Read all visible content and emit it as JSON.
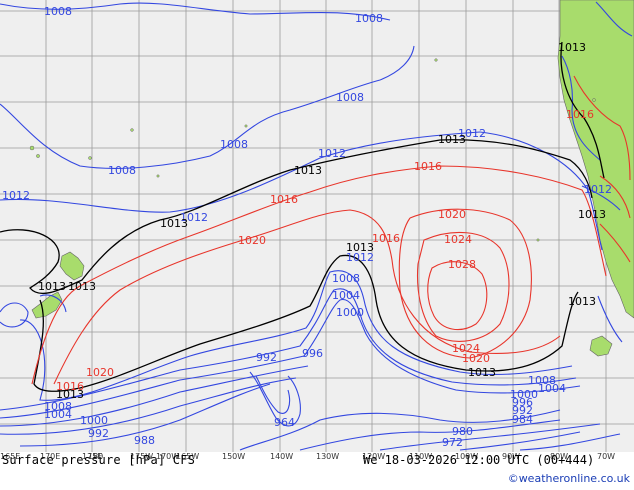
{
  "colors": {
    "sea": "#efefef",
    "land": "#a8dc6c",
    "grid": "#9a9a9a",
    "low_isobar": "#3347e0",
    "mean_isobar": "#000000",
    "high_isobar": "#e8352b",
    "credit": "#1a3db5"
  },
  "footer": {
    "title": "Surface pressure [hPa] CFS",
    "valid_time": "We 18-03-2026 12:00 UTC (00+444)",
    "credit": "©weatheronline.co.uk"
  },
  "longitude_ticks": [
    "165E",
    "170E",
    "175E",
    "180",
    "175W",
    "170W",
    "165W",
    "150W",
    "140W",
    "130W",
    "120W",
    "110W",
    "100W",
    "90W",
    "80W",
    "70W"
  ],
  "isobar_labels": [
    {
      "text": "1008",
      "kind": "low"
    },
    {
      "text": "1008",
      "kind": "low"
    },
    {
      "text": "1008",
      "kind": "low"
    },
    {
      "text": "1008",
      "kind": "low"
    },
    {
      "text": "1008",
      "kind": "low"
    },
    {
      "text": "1012",
      "kind": "low"
    },
    {
      "text": "1012",
      "kind": "low"
    },
    {
      "text": "1012",
      "kind": "low"
    },
    {
      "text": "1012",
      "kind": "low"
    },
    {
      "text": "1012",
      "kind": "low"
    },
    {
      "text": "1012",
      "kind": "low"
    },
    {
      "text": "1013",
      "kind": "mean"
    },
    {
      "text": "1013",
      "kind": "mean"
    },
    {
      "text": "1013",
      "kind": "mean"
    },
    {
      "text": "1013",
      "kind": "mean"
    },
    {
      "text": "1013",
      "kind": "mean"
    },
    {
      "text": "1013",
      "kind": "mean"
    },
    {
      "text": "1013",
      "kind": "mean"
    },
    {
      "text": "1013",
      "kind": "mean"
    },
    {
      "text": "1013",
      "kind": "mean"
    },
    {
      "text": "1013",
      "kind": "mean"
    },
    {
      "text": "1013",
      "kind": "mean"
    },
    {
      "text": "1016",
      "kind": "high"
    },
    {
      "text": "1016",
      "kind": "high"
    },
    {
      "text": "1016",
      "kind": "high"
    },
    {
      "text": "1016",
      "kind": "high"
    },
    {
      "text": "1016",
      "kind": "high"
    },
    {
      "text": "1020",
      "kind": "high"
    },
    {
      "text": "1020",
      "kind": "high"
    },
    {
      "text": "1020",
      "kind": "high"
    },
    {
      "text": "1020",
      "kind": "high"
    },
    {
      "text": "1024",
      "kind": "high"
    },
    {
      "text": "1024",
      "kind": "high"
    },
    {
      "text": "1028",
      "kind": "high"
    },
    {
      "text": "1008",
      "kind": "low"
    },
    {
      "text": "1004",
      "kind": "low"
    },
    {
      "text": "1000",
      "kind": "low"
    },
    {
      "text": "996",
      "kind": "low"
    },
    {
      "text": "992",
      "kind": "low"
    },
    {
      "text": "964",
      "kind": "low"
    },
    {
      "text": "1008",
      "kind": "low"
    },
    {
      "text": "1004",
      "kind": "low"
    },
    {
      "text": "1000",
      "kind": "low"
    },
    {
      "text": "992",
      "kind": "low"
    },
    {
      "text": "988",
      "kind": "low"
    },
    {
      "text": "980",
      "kind": "low"
    },
    {
      "text": "972",
      "kind": "low"
    },
    {
      "text": "1008",
      "kind": "low"
    },
    {
      "text": "1004",
      "kind": "low"
    },
    {
      "text": "1000",
      "kind": "low"
    },
    {
      "text": "996",
      "kind": "low"
    },
    {
      "text": "992",
      "kind": "low"
    },
    {
      "text": "984",
      "kind": "low"
    }
  ]
}
